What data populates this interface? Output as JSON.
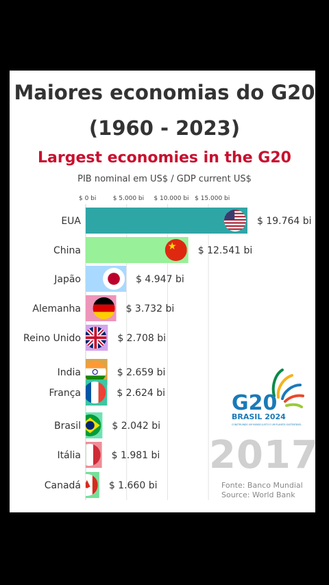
{
  "title_pt": "Maiores economias do G20",
  "title_years": "(1960 - 2023)",
  "title_en": "Largest economies in the G20",
  "subtitle": "PIB nominal em US$ / GDP current US$",
  "year": "2017",
  "source_pt": "Fonte: Banco Mundial",
  "source_en": "Source: World Bank",
  "logo": {
    "text": "G20",
    "country": "BRASIL 2024",
    "tagline": "CONSTRUINDO UM MUNDO JUSTO E UM PLANETA SUSTENTÁVEL",
    "colors": [
      "#0a8a4a",
      "#f6b21b",
      "#1a7ab8",
      "#e84a2b",
      "#9cc93b"
    ]
  },
  "chart_data": {
    "type": "bar",
    "orientation": "horizontal",
    "unit": "bi US$",
    "xlim": [
      0,
      21000
    ],
    "ticks": [
      {
        "value": 0,
        "label": "$ 0 bi"
      },
      {
        "value": 5000,
        "label": "$ 5.000 bi"
      },
      {
        "value": 10000,
        "label": "$ 10.000 bi"
      },
      {
        "value": 15000,
        "label": "$ 15.000 bi"
      }
    ],
    "categories": [
      "EUA",
      "China",
      "Japão",
      "Alemanha",
      "Reino Unido",
      "India",
      "França",
      "Brasil",
      "Itália",
      "Canadá"
    ],
    "values": [
      19764,
      12541,
      4947,
      3732,
      2708,
      2659,
      2624,
      2042,
      1981,
      1660
    ],
    "value_labels": [
      "$ 19.764 bi",
      "$ 12.541 bi",
      "$ 4.947 bi",
      "$ 3.732 bi",
      "$ 2.708 bi",
      "$ 2.659 bi",
      "$ 2.624 bi",
      "$ 2.042 bi",
      "$ 1.981 bi",
      "$ 1.660 bi"
    ],
    "flags": [
      "us-flag-icon",
      "china-flag-icon",
      "japan-flag-icon",
      "germany-flag-icon",
      "uk-flag-icon",
      "india-flag-icon",
      "france-flag-icon",
      "brazil-flag-icon",
      "italy-flag-icon",
      "canada-flag-icon"
    ],
    "colors": [
      "#2fa6a6",
      "#98f098",
      "#a9d9ff",
      "#ee95ba",
      "#d3a6ee",
      "#d9a54a",
      "#3cc7a3",
      "#6fe2b2",
      "#ed8e98",
      "#74e09a"
    ],
    "grid": true
  }
}
